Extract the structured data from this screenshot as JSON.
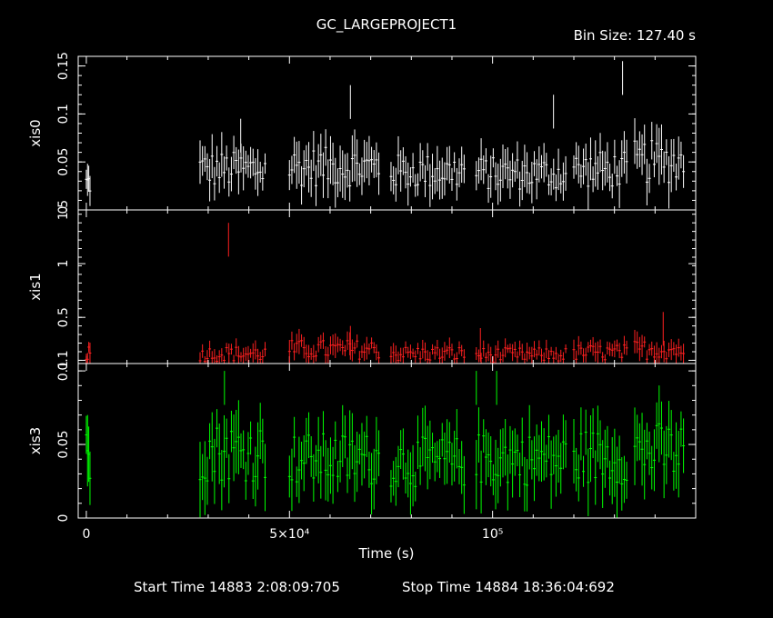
{
  "title": "GC_LARGEPROJECT1",
  "bin_size": "Bin Size: 127.40 s",
  "xlabel": "Time (s)",
  "start_time": "Start Time 14883  2:08:09:705",
  "stop_time": "Stop Time 14884 18:36:04:692",
  "colors": {
    "background": "#000000",
    "axes": "#ffffff",
    "xis0": "#ffffff",
    "xis1": "#ff2020",
    "xis3": "#00ff00"
  },
  "chart_data": [
    {
      "type": "scatter",
      "name": "xis0",
      "ylabel": "xis0",
      "xlim": [
        -2000,
        150000
      ],
      "ylim": [
        0,
        0.16
      ],
      "yticks": [
        0,
        0.05,
        0.1,
        0.15
      ],
      "ytick_labels": [
        "0",
        "0.05",
        "0.1",
        "0.15"
      ],
      "color": "#ffffff",
      "segments": [
        {
          "x": [
            0,
            900
          ],
          "mean": 0.028
        },
        {
          "x": [
            28000,
            44000
          ],
          "mean": 0.042
        },
        {
          "x": [
            50000,
            72000
          ],
          "mean": 0.045
        },
        {
          "x": [
            75000,
            93000
          ],
          "mean": 0.04
        },
        {
          "x": [
            96000,
            118000
          ],
          "mean": 0.038
        },
        {
          "x": [
            120000,
            133000
          ],
          "mean": 0.042
        },
        {
          "x": [
            135000,
            147000
          ],
          "mean": 0.05
        }
      ],
      "spikes": [
        {
          "x": 65000,
          "y": 0.13
        },
        {
          "x": 132000,
          "y": 0.155
        },
        {
          "x": 115000,
          "y": 0.12
        },
        {
          "x": 38000,
          "y": 0.095
        }
      ]
    },
    {
      "type": "scatter",
      "name": "xis1",
      "ylabel": "xis1",
      "xlim": [
        -2000,
        150000
      ],
      "ylim": [
        0.07,
        1.5
      ],
      "yticks": [
        0.1,
        0.5,
        1,
        1.5
      ],
      "ytick_labels": [
        "0.1",
        "0.5",
        "1",
        "1.5"
      ],
      "color": "#ff2020",
      "segments": [
        {
          "x": [
            0,
            900
          ],
          "mean": 0.17
        },
        {
          "x": [
            28000,
            44000
          ],
          "mean": 0.16
        },
        {
          "x": [
            50000,
            72000
          ],
          "mean": 0.2
        },
        {
          "x": [
            75000,
            93000
          ],
          "mean": 0.16
        },
        {
          "x": [
            96000,
            118000
          ],
          "mean": 0.15
        },
        {
          "x": [
            120000,
            133000
          ],
          "mean": 0.17
        },
        {
          "x": [
            135000,
            147000
          ],
          "mean": 0.2
        }
      ],
      "spikes": [
        {
          "x": 35000,
          "y": 1.38
        },
        {
          "x": 142000,
          "y": 0.55
        },
        {
          "x": 65000,
          "y": 0.42
        },
        {
          "x": 97000,
          "y": 0.4
        }
      ]
    },
    {
      "type": "scatter",
      "name": "xis3",
      "ylabel": "xis3",
      "xlim": [
        -2000,
        150000
      ],
      "ylim": [
        0,
        0.105
      ],
      "yticks": [
        0,
        0.05,
        0.1
      ],
      "ytick_labels": [
        "0",
        "0.05",
        "0.1"
      ],
      "color": "#00ff00",
      "segments": [
        {
          "x": [
            0,
            900
          ],
          "mean": 0.042
        },
        {
          "x": [
            28000,
            44000
          ],
          "mean": 0.045
        },
        {
          "x": [
            50000,
            72000
          ],
          "mean": 0.04
        },
        {
          "x": [
            75000,
            93000
          ],
          "mean": 0.038
        },
        {
          "x": [
            96000,
            118000
          ],
          "mean": 0.04
        },
        {
          "x": [
            120000,
            133000
          ],
          "mean": 0.042
        },
        {
          "x": [
            135000,
            147000
          ],
          "mean": 0.045
        }
      ],
      "spikes": [
        {
          "x": 34000,
          "y": 0.1
        },
        {
          "x": 96000,
          "y": 0.1
        },
        {
          "x": 101000,
          "y": 0.1
        }
      ],
      "xticks": [
        0,
        50000,
        100000
      ],
      "xtick_labels": [
        "0",
        "5×10⁴",
        "10⁵"
      ]
    }
  ]
}
